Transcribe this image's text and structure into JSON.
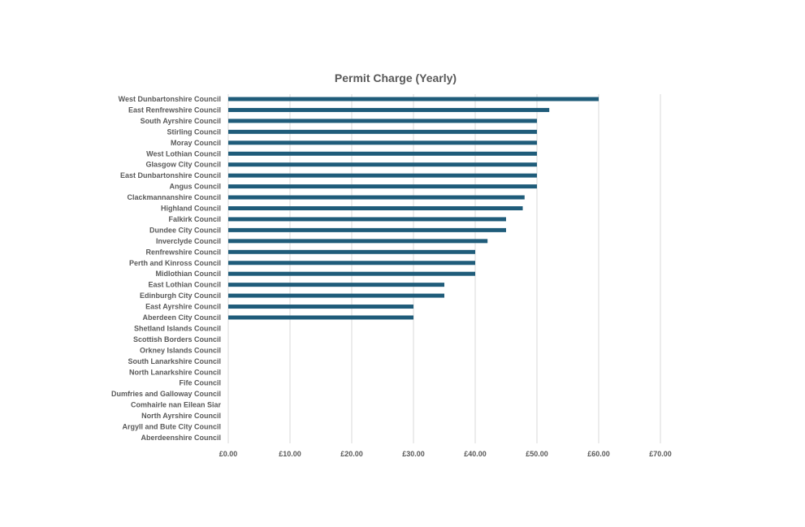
{
  "chart_data": {
    "type": "bar",
    "orientation": "horizontal",
    "title": "Permit Charge (Yearly)",
    "xlabel": "",
    "ylabel": "",
    "xlim": [
      0,
      70
    ],
    "grid": true,
    "legend": "none",
    "bar_color": "#1f5c7a",
    "grid_color": "#d9d9d9",
    "text_color": "#595959",
    "x_ticks": [
      0,
      10,
      20,
      30,
      40,
      50,
      60,
      70
    ],
    "x_tick_labels": [
      "£0.00",
      "£10.00",
      "£20.00",
      "£30.00",
      "£40.00",
      "£50.00",
      "£60.00",
      "£70.00"
    ],
    "categories": [
      "West Dunbartonshire Council",
      "East Renfrewshire Council",
      "South Ayrshire Council",
      "Stirling Council",
      "Moray Council",
      "West Lothian Council",
      "Glasgow City Council",
      "East Dunbartonshire Council",
      "Angus Council",
      "Clackmannanshire Council",
      "Highland Council",
      "Falkirk Council",
      "Dundee City Council",
      "Inverclyde Council",
      "Renfrewshire Council",
      "Perth and Kinross Council",
      "Midlothian Council",
      "East Lothian Council",
      "Edinburgh City Council",
      "East Ayrshire Council",
      "Aberdeen City Council",
      "Shetland Islands Council",
      "Scottish Borders Council",
      "Orkney Islands Council",
      "South Lanarkshire Council",
      "North Lanarkshire Council",
      "Fife Council",
      "Dumfries and Galloway Council",
      "Comhairle nan Eilean Siar",
      "North Ayrshire Council",
      "Argyll and Bute City Council",
      "Aberdeenshire Council"
    ],
    "values": [
      60,
      52,
      50,
      50,
      50,
      50,
      50,
      50,
      50,
      48,
      47.7,
      45,
      45,
      42,
      40,
      40,
      40,
      35,
      35,
      30,
      30,
      0,
      0,
      0,
      0,
      0,
      0,
      0,
      0,
      0,
      0,
      0
    ]
  }
}
